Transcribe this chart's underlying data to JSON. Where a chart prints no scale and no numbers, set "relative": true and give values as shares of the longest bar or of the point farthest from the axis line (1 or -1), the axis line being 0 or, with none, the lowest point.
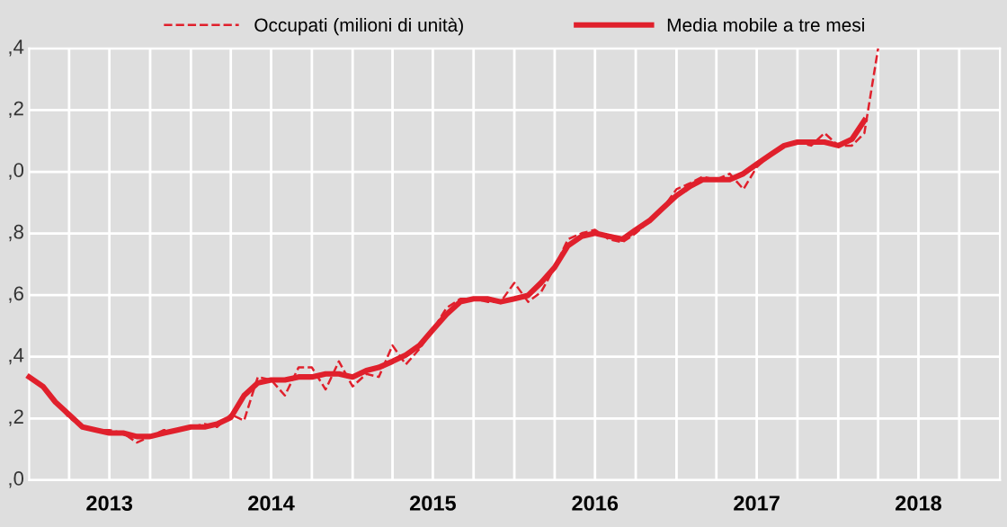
{
  "chart_data": {
    "type": "line",
    "relative": true,
    "x": [
      "2013-01",
      "2013-02",
      "2013-03",
      "2013-04",
      "2013-05",
      "2013-06",
      "2013-07",
      "2013-08",
      "2013-09",
      "2013-10",
      "2013-11",
      "2013-12",
      "2014-01",
      "2014-02",
      "2014-03",
      "2014-04",
      "2014-05",
      "2014-06",
      "2014-07",
      "2014-08",
      "2014-09",
      "2014-10",
      "2014-11",
      "2014-12",
      "2015-01",
      "2015-02",
      "2015-03",
      "2015-04",
      "2015-05",
      "2015-06",
      "2015-07",
      "2015-08",
      "2015-09",
      "2015-10",
      "2015-11",
      "2015-12",
      "2016-01",
      "2016-02",
      "2016-03",
      "2016-04",
      "2016-05",
      "2016-06",
      "2016-07",
      "2016-08",
      "2016-09",
      "2016-10",
      "2016-11",
      "2016-12",
      "2017-01",
      "2017-02",
      "2017-03",
      "2017-04",
      "2017-05",
      "2017-06",
      "2017-07",
      "2017-08",
      "2017-09",
      "2017-10",
      "2017-11",
      "2017-12",
      "2018-01",
      "2018-02",
      "2018-03",
      "2018-04"
    ],
    "series": [
      {
        "name": "Occupati (milioni di unità)",
        "color": "#e0202c",
        "line_style": "dashed",
        "values": [
          0.239,
          0.217,
          0.181,
          0.145,
          0.123,
          0.116,
          0.116,
          0.109,
          0.087,
          0.101,
          0.116,
          0.116,
          0.123,
          0.13,
          0.123,
          0.152,
          0.138,
          0.239,
          0.232,
          0.196,
          0.261,
          0.261,
          0.21,
          0.275,
          0.217,
          0.246,
          0.239,
          0.312,
          0.268,
          0.304,
          0.348,
          0.399,
          0.42,
          0.42,
          0.413,
          0.413,
          0.457,
          0.413,
          0.435,
          0.493,
          0.558,
          0.572,
          0.58,
          0.558,
          0.551,
          0.572,
          0.601,
          0.63,
          0.674,
          0.688,
          0.703,
          0.696,
          0.71,
          0.674,
          0.725,
          0.754,
          0.775,
          0.783,
          0.775,
          0.804,
          0.775,
          0.775,
          0.804,
          1
        ]
      },
      {
        "name": "Media mobile a tre mesi",
        "color": "#e0202c",
        "line_style": "solid",
        "values": [
          0.239,
          0.217,
          0.181,
          0.152,
          0.123,
          0.116,
          0.109,
          0.109,
          0.101,
          0.101,
          0.109,
          0.116,
          0.123,
          0.123,
          0.13,
          0.145,
          0.196,
          0.225,
          0.232,
          0.232,
          0.239,
          0.239,
          0.246,
          0.246,
          0.239,
          0.254,
          0.261,
          0.275,
          0.29,
          0.312,
          0.348,
          0.384,
          0.413,
          0.42,
          0.42,
          0.413,
          0.42,
          0.428,
          0.457,
          0.493,
          0.543,
          0.565,
          0.572,
          0.565,
          0.558,
          0.58,
          0.601,
          0.63,
          0.659,
          0.681,
          0.696,
          0.696,
          0.696,
          0.71,
          0.732,
          0.754,
          0.775,
          0.783,
          0.783,
          0.783,
          0.775,
          0.79,
          0.833,
          null
        ]
      }
    ],
    "xlim": [
      "2013-01",
      "2019-01"
    ],
    "xticks": [
      {
        "value": "2013-04",
        "label": null
      },
      {
        "value": "2013-07",
        "label": "2013"
      },
      {
        "value": "2013-10",
        "label": null
      },
      {
        "value": "2014-01",
        "label": null
      },
      {
        "value": "2014-04",
        "label": null
      },
      {
        "value": "2014-07",
        "label": "2014"
      },
      {
        "value": "2014-10",
        "label": null
      },
      {
        "value": "2015-01",
        "label": null
      },
      {
        "value": "2015-04",
        "label": null
      },
      {
        "value": "2015-07",
        "label": "2015"
      },
      {
        "value": "2015-10",
        "label": null
      },
      {
        "value": "2016-01",
        "label": null
      },
      {
        "value": "2016-04",
        "label": null
      },
      {
        "value": "2016-07",
        "label": "2016"
      },
      {
        "value": "2016-10",
        "label": null
      },
      {
        "value": "2017-01",
        "label": null
      },
      {
        "value": "2017-04",
        "label": null
      },
      {
        "value": "2017-07",
        "label": "2017"
      },
      {
        "value": "2017-10",
        "label": null
      },
      {
        "value": "2018-01",
        "label": null
      },
      {
        "value": "2018-04",
        "label": null
      },
      {
        "value": "2018-07",
        "label": "2018"
      },
      {
        "value": "2018-10",
        "label": null
      }
    ],
    "annotations": [
      ",4",
      ",2",
      ",0",
      ",8",
      ",6",
      ",4",
      ",2",
      ",0"
    ],
    "grid": true,
    "legend": "top"
  }
}
